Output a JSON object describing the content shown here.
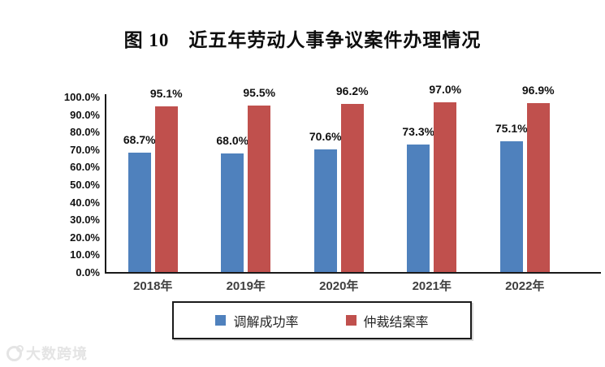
{
  "title": "图 10　近五年劳动人事争议案件办理情况",
  "chart_data": {
    "type": "bar",
    "title": "图 10　近五年劳动人事争议案件办理情况",
    "categories": [
      "2018年",
      "2019年",
      "2020年",
      "2021年",
      "2022年"
    ],
    "series": [
      {
        "name": "调解成功率",
        "color": "#4F81BD",
        "values": [
          68.7,
          68.0,
          70.6,
          73.3,
          75.1
        ],
        "labels": [
          "68.7%",
          "68.0%",
          "70.6%",
          "73.3%",
          "75.1%"
        ]
      },
      {
        "name": "仲裁结案率",
        "color": "#C0504D",
        "values": [
          95.1,
          95.5,
          96.2,
          97.0,
          96.9
        ],
        "labels": [
          "95.1%",
          "95.5%",
          "96.2%",
          "97.0%",
          "96.9%"
        ]
      }
    ],
    "xlabel": "",
    "ylabel": "",
    "ylim": [
      0,
      100
    ],
    "yticks": [
      "100.0%",
      "90.0%",
      "80.0%",
      "70.0%",
      "60.0%",
      "50.0%",
      "40.0%",
      "30.0%",
      "20.0%",
      "10.0%",
      "0.0%"
    ],
    "grid": false,
    "legend_position": "bottom",
    "data_labels": true
  },
  "watermark": {
    "text": "大数跨境"
  }
}
